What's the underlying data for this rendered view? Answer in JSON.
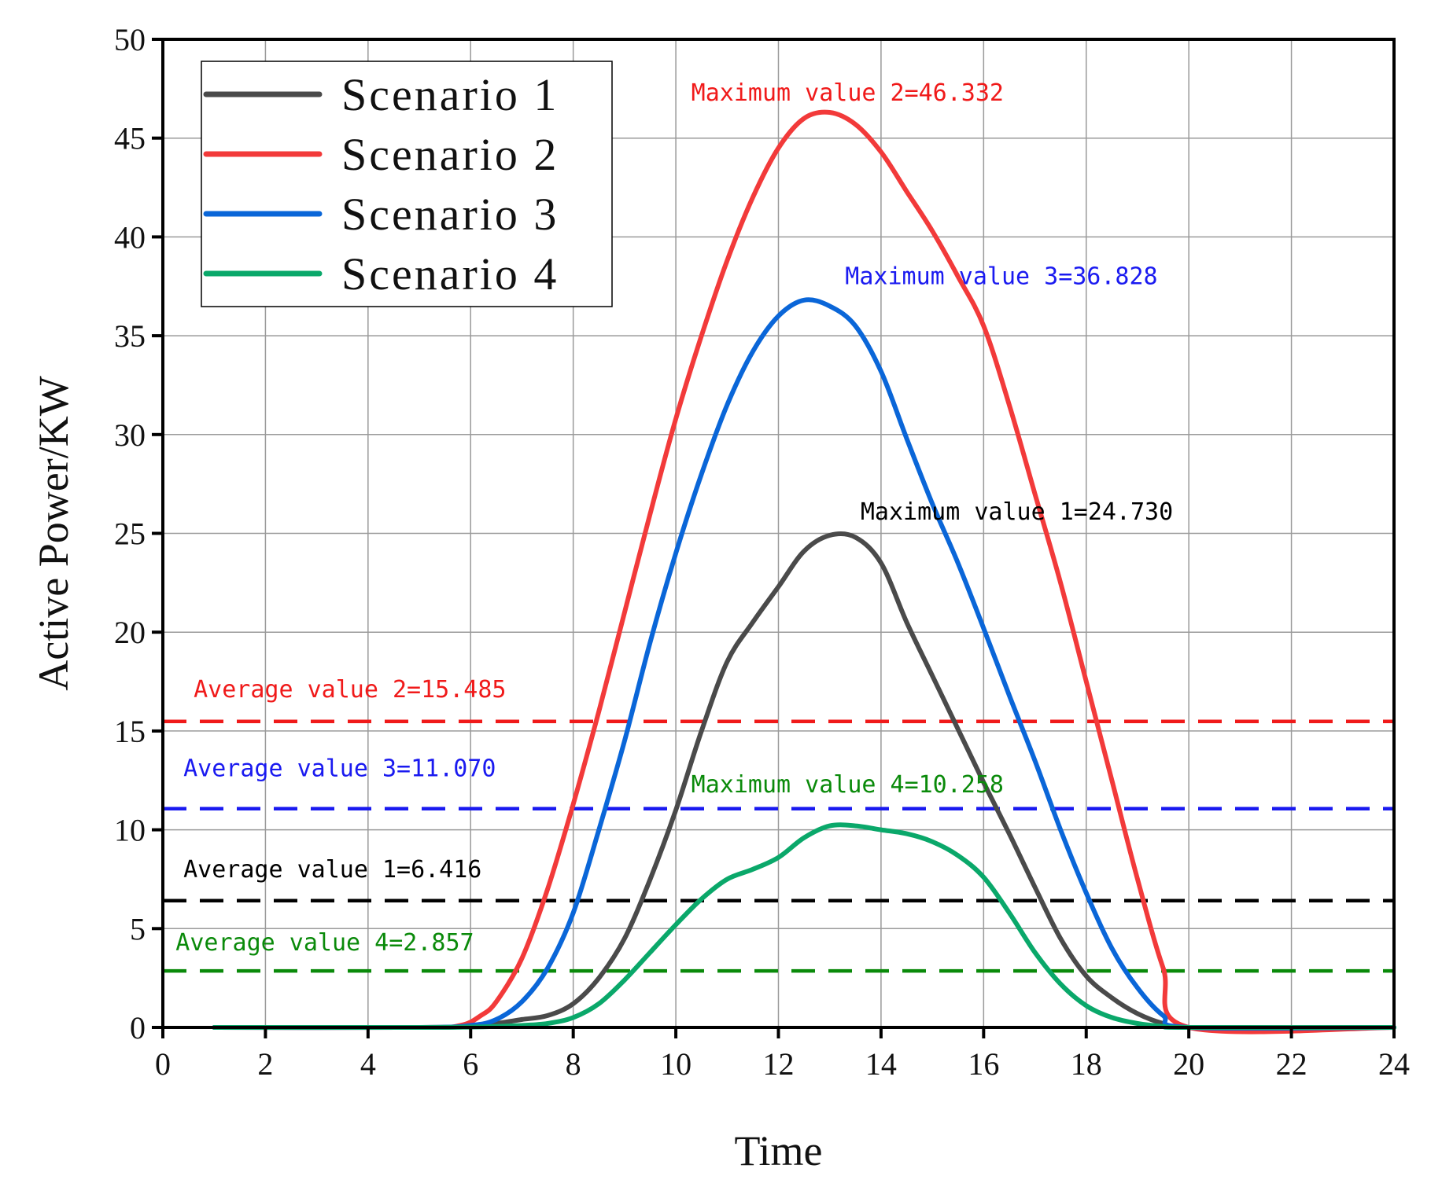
{
  "chart_data": {
    "type": "line",
    "xlabel": "Time",
    "ylabel": "Active Power/KW",
    "xlim": [
      0,
      24
    ],
    "ylim": [
      0,
      50
    ],
    "xticks": [
      0,
      2,
      4,
      6,
      8,
      10,
      12,
      14,
      16,
      18,
      20,
      22,
      24
    ],
    "yticks": [
      0,
      5,
      10,
      15,
      20,
      25,
      30,
      35,
      40,
      45,
      50
    ],
    "grid": true,
    "legend_position": "top-left",
    "series": [
      {
        "name": "Scenario 1",
        "color": "#4a4a4a",
        "x": [
          1,
          5,
          6,
          6.5,
          7,
          7.5,
          8,
          8.5,
          9,
          9.5,
          10,
          10.5,
          11,
          11.5,
          12,
          12.5,
          13,
          13.5,
          14,
          14.5,
          15,
          15.5,
          16,
          16.5,
          17,
          17.5,
          18,
          18.5,
          19,
          19.5,
          20
        ],
        "values": [
          0,
          0,
          0.05,
          0.2,
          0.4,
          0.6,
          1.2,
          2.5,
          4.5,
          7.5,
          11,
          15,
          18.5,
          20.5,
          22.3,
          24.1,
          24.9,
          24.8,
          23.5,
          20.5,
          17.8,
          15.1,
          12.4,
          9.8,
          7.1,
          4.5,
          2.6,
          1.5,
          0.7,
          0.2,
          0
        ]
      },
      {
        "name": "Scenario 2",
        "color": "#f23a3a",
        "x": [
          1,
          5,
          5.8,
          6.2,
          6.5,
          7,
          7.5,
          8,
          8.5,
          9,
          9.5,
          10,
          10.5,
          11,
          11.5,
          12,
          12.5,
          13,
          13.5,
          14,
          14.5,
          15,
          15.5,
          16,
          16.5,
          17,
          17.5,
          18,
          18.5,
          19,
          19.5,
          20
        ],
        "values": [
          0,
          0,
          0.1,
          0.6,
          1.3,
          3.5,
          7,
          11.3,
          16,
          21,
          26,
          30.8,
          35,
          38.8,
          42,
          44.5,
          46,
          46.3,
          45.7,
          44.3,
          42.3,
          40.3,
          38,
          35.5,
          31.5,
          27,
          22.5,
          17.5,
          12.5,
          7.5,
          3,
          0
        ]
      },
      {
        "name": "Scenario 3",
        "color": "#0a66d8",
        "x": [
          1,
          5,
          6,
          6.5,
          7,
          7.5,
          8,
          8.5,
          9,
          9.5,
          10,
          10.5,
          11,
          11.5,
          12,
          12.5,
          13,
          13.5,
          14,
          14.5,
          15,
          15.5,
          16,
          16.5,
          17,
          17.5,
          18,
          18.5,
          19,
          19.5,
          20
        ],
        "values": [
          0,
          0,
          0.1,
          0.4,
          1.3,
          3,
          5.8,
          10,
          14.5,
          19.5,
          24,
          28,
          31.5,
          34.2,
          36,
          36.8,
          36.5,
          35.5,
          33.2,
          29.8,
          26.5,
          23.5,
          20.2,
          16.8,
          13.5,
          10,
          6.8,
          4,
          2,
          0.6,
          0
        ]
      },
      {
        "name": "Scenario 4",
        "color": "#0aa86a",
        "x": [
          1,
          5,
          6,
          6.5,
          7,
          7.5,
          8,
          8.5,
          9,
          9.5,
          10,
          10.5,
          11,
          11.5,
          12,
          12.5,
          13,
          13.5,
          14,
          14.5,
          15,
          15.5,
          16,
          16.5,
          17,
          17.5,
          18,
          18.5,
          19,
          19.5,
          20
        ],
        "values": [
          0,
          0,
          0.02,
          0.05,
          0.1,
          0.2,
          0.5,
          1.2,
          2.4,
          3.8,
          5.2,
          6.5,
          7.5,
          8,
          8.6,
          9.6,
          10.2,
          10.2,
          10,
          9.8,
          9.4,
          8.7,
          7.6,
          5.8,
          3.8,
          2.2,
          1.1,
          0.5,
          0.2,
          0.05,
          0
        ]
      }
    ],
    "reference_lines": [
      {
        "id": "avg2",
        "value": 15.485,
        "color": "#f01a1a",
        "label": "Average value 2=15.485"
      },
      {
        "id": "avg3",
        "value": 11.07,
        "color": "#1a1af0",
        "label": "Average value 3=11.070"
      },
      {
        "id": "avg1",
        "value": 6.416,
        "color": "#000000",
        "label": "Average value 1=6.416"
      },
      {
        "id": "avg4",
        "value": 2.857,
        "color": "#0a8a0a",
        "label": "Average value 4=2.857"
      }
    ],
    "annotations": [
      {
        "id": "max2",
        "text": "Maximum value 2=46.332",
        "color": "#f01a1a",
        "x": 10.3,
        "y": 46.9
      },
      {
        "id": "max3",
        "text": "Maximum value 3=36.828",
        "color": "#1a1af0",
        "x": 13.3,
        "y": 37.6
      },
      {
        "id": "max1",
        "text": "Maximum value 1=24.730",
        "color": "#000000",
        "x": 13.6,
        "y": 25.7
      },
      {
        "id": "max4",
        "text": "Maximum value 4=10.258",
        "color": "#0a8a0a",
        "x": 10.3,
        "y": 11.9
      },
      {
        "id": "avg2",
        "text": "Average value 2=15.485",
        "color": "#f01a1a",
        "x": 0.6,
        "y": 16.7
      },
      {
        "id": "avg3",
        "text": "Average value 3=11.070",
        "color": "#1a1af0",
        "x": 0.4,
        "y": 12.7
      },
      {
        "id": "avg1",
        "text": "Average value 1=6.416",
        "color": "#000000",
        "x": 0.4,
        "y": 7.6
      },
      {
        "id": "avg4",
        "text": "Average value 4=2.857",
        "color": "#0a8a0a",
        "x": 0.25,
        "y": 3.9
      }
    ]
  }
}
